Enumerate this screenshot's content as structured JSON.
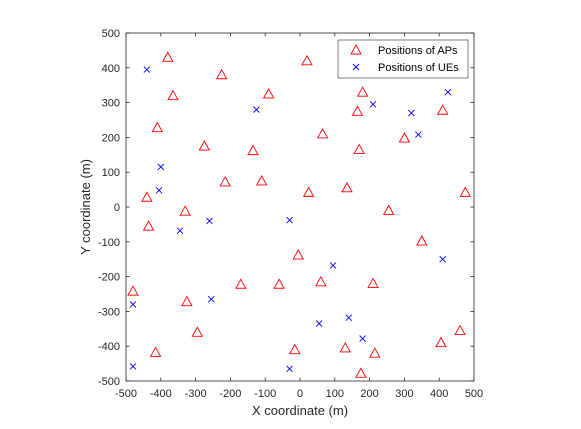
{
  "chart_data": {
    "type": "scatter",
    "xlabel": "X coordinate (m)",
    "ylabel": "Y coordinate (m)",
    "xlim": [
      -500,
      500
    ],
    "ylim": [
      -500,
      500
    ],
    "xticks": [
      "-500",
      "-400",
      "-300",
      "-200",
      "-100",
      "0",
      "100",
      "200",
      "300",
      "400",
      "500"
    ],
    "yticks": [
      "-500",
      "-400",
      "-300",
      "-200",
      "-100",
      "0",
      "100",
      "200",
      "300",
      "400",
      "500"
    ],
    "grid": false,
    "legend_position": "top-right",
    "series": [
      {
        "name": "Positions of APs",
        "marker": "triangle",
        "color": "#ff0000",
        "x": [
          -380,
          20,
          -225,
          -90,
          180,
          165,
          65,
          410,
          -410,
          300,
          -135,
          170,
          -275,
          135,
          475,
          -365,
          -440,
          -215,
          -110,
          25,
          255,
          -330,
          -435,
          350,
          -480,
          -5,
          -60,
          60,
          210,
          -170,
          -325,
          460,
          -295,
          405,
          130,
          215,
          -15,
          -415,
          175
        ],
        "y": [
          430,
          420,
          380,
          325,
          330,
          275,
          210,
          278,
          228,
          198,
          162,
          165,
          175,
          55,
          42,
          320,
          28,
          72,
          75,
          42,
          -10,
          -12,
          -55,
          -98,
          -242,
          -138,
          -222,
          -215,
          -220,
          -222,
          -272,
          -355,
          -360,
          -390,
          -405,
          -420,
          -410,
          -418,
          -478
        ]
      },
      {
        "name": "Positions of UEs",
        "marker": "x",
        "color": "#0000ff",
        "x": [
          -440,
          -125,
          210,
          425,
          320,
          340,
          -400,
          -405,
          -345,
          -260,
          -30,
          95,
          -255,
          410,
          -480,
          140,
          55,
          180,
          -480,
          -30
        ],
        "y": [
          395,
          280,
          295,
          330,
          270,
          208,
          115,
          48,
          -68,
          -40,
          -38,
          -168,
          -265,
          -150,
          -280,
          -318,
          -335,
          -378,
          -458,
          -465
        ]
      }
    ]
  }
}
